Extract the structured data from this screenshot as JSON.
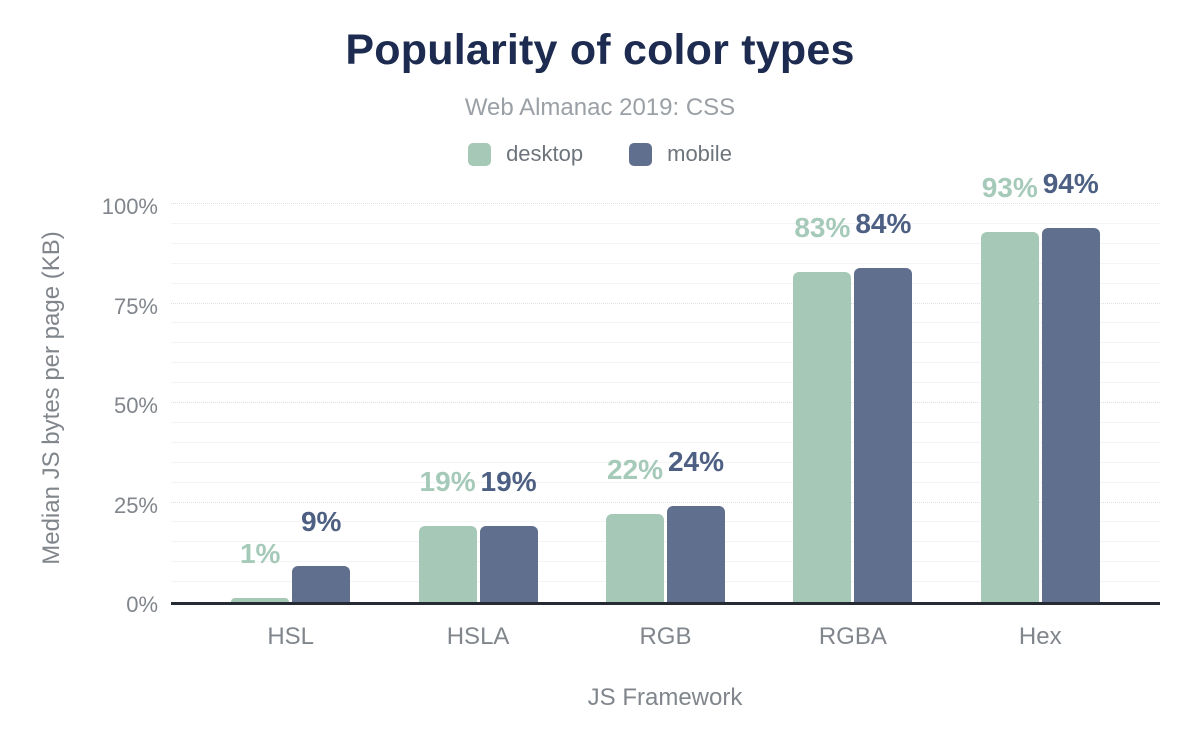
{
  "title": "Popularity of color types",
  "subtitle": "Web Almanac 2019: CSS",
  "chart_data": {
    "type": "bar",
    "categories": [
      "HSL",
      "HSLA",
      "RGB",
      "RGBA",
      "Hex"
    ],
    "series": [
      {
        "name": "desktop",
        "color": "#a6c8b6",
        "label_color": "#a6cab9",
        "values": [
          1,
          19,
          22,
          83,
          93
        ]
      },
      {
        "name": "mobile",
        "color": "#5f6f8d",
        "label_color": "#4d5f82",
        "values": [
          9,
          19,
          24,
          84,
          94
        ]
      }
    ],
    "value_suffix": "%",
    "xlabel": "JS Framework",
    "ylabel": "Median JS bytes per page (KB)",
    "ylim": [
      0,
      100
    ],
    "yticks": [
      0,
      25,
      50,
      75,
      100
    ],
    "ytick_suffix": "%",
    "grid": {
      "orientation": "horizontal",
      "minor_step": 5,
      "major_step": 25
    },
    "legend_position": "top"
  },
  "colors": {
    "title_text": "#1c2b4f",
    "subtitle_text": "#9aa0a6",
    "axis_text": "#81868c",
    "legend_text": "#6e747c",
    "axis_line": "#262b33",
    "grid_minor": "#f3f4f5",
    "grid_major": "#dcdfe3",
    "background": "#ffffff"
  }
}
